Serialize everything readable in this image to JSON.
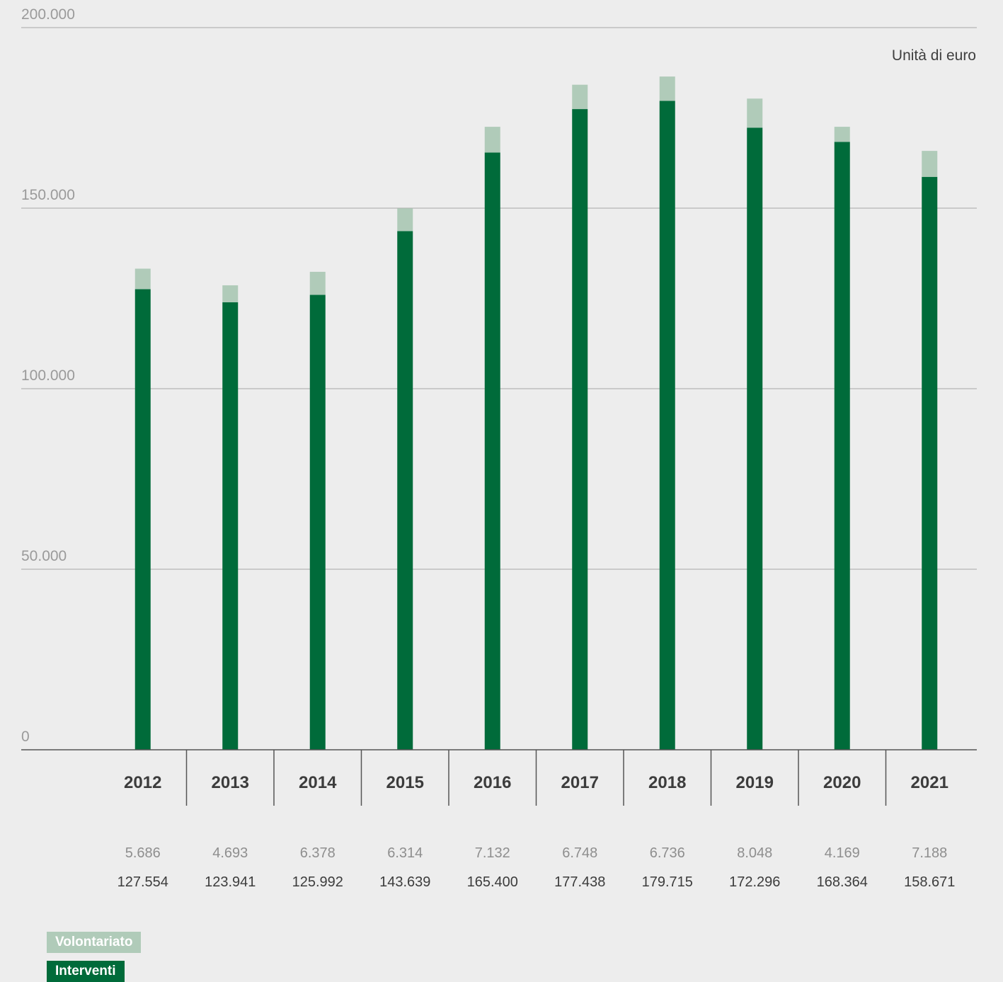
{
  "chart_data": {
    "type": "bar",
    "stacked": true,
    "unit_label": "Unità di euro",
    "categories": [
      "2012",
      "2013",
      "2014",
      "2015",
      "2016",
      "2017",
      "2018",
      "2019",
      "2020",
      "2021"
    ],
    "series": [
      {
        "name": "Interventi",
        "color": "#006b3a",
        "values": [
          127554,
          123941,
          125992,
          143639,
          165400,
          177438,
          179715,
          172296,
          168364,
          158671
        ],
        "labels": [
          "127.554",
          "123.941",
          "125.992",
          "143.639",
          "165.400",
          "177.438",
          "179.715",
          "172.296",
          "168.364",
          "158.671"
        ]
      },
      {
        "name": "Volontariato",
        "color": "#b0cbb9",
        "values": [
          5686,
          4693,
          6378,
          6314,
          7132,
          6748,
          6736,
          8048,
          4169,
          7188
        ],
        "labels": [
          "5.686",
          "4.693",
          "6.378",
          "6.314",
          "7.132",
          "6.748",
          "6.736",
          "8.048",
          "4.169",
          "7.188"
        ]
      }
    ],
    "ylim": [
      0,
      200000
    ],
    "yticks": [
      0,
      50000,
      100000,
      150000,
      200000
    ],
    "ytick_labels": [
      "0",
      "50.000",
      "100.000",
      "150.000",
      "200.000"
    ],
    "grid": true
  },
  "legend": {
    "volontariato": "Volontariato",
    "interventi": "Interventi"
  }
}
